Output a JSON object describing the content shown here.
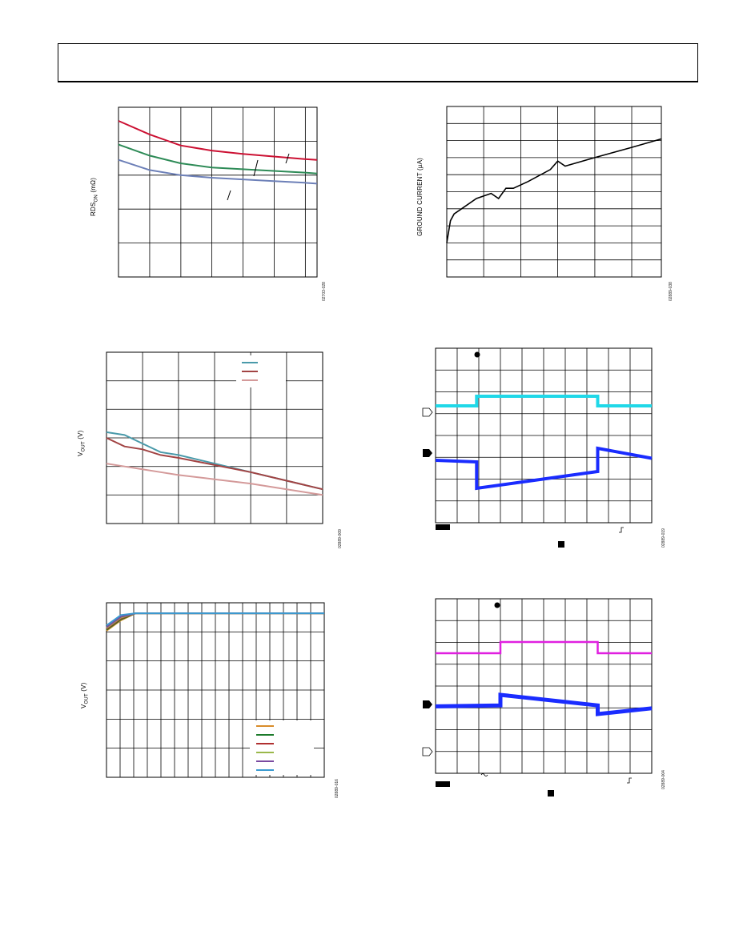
{
  "page": {
    "header_text": ""
  },
  "charts": {
    "rds": {
      "ylabel_main": "RDS",
      "ylabel_sub": "ON",
      "ylabel_unit": " (mΩ)",
      "figure_id": "02703-028"
    },
    "ground": {
      "ylabel": "GROUND CURRENT (µA)",
      "figure_id": "02889-038"
    },
    "vout_load": {
      "ylabel_main": "V",
      "ylabel_sub": "OUT",
      "ylabel_unit": " (V)",
      "figure_id": "02889-009"
    },
    "scope_load": {
      "figure_id": "02889-019"
    },
    "vout_dropout": {
      "ylabel_main": "V",
      "ylabel_sub": "OUT",
      "ylabel_unit": " (V)",
      "figure_id": "02889-016"
    },
    "scope_line": {
      "figure_id": "02889-004"
    }
  },
  "chart_data": [
    {
      "type": "line",
      "ylabel": "RDSON (mΩ)",
      "x": [
        0,
        0.5,
        1,
        1.5,
        2,
        2.5,
        3,
        3.2
      ],
      "series": [
        {
          "color": "#cc1133",
          "values": [
            0.92,
            0.84,
            0.775,
            0.745,
            0.725,
            0.71,
            0.695,
            0.69
          ]
        },
        {
          "color": "#2e8b57",
          "values": [
            0.78,
            0.715,
            0.67,
            0.645,
            0.635,
            0.625,
            0.615,
            0.61
          ]
        },
        {
          "color": "#6d80b8",
          "values": [
            0.69,
            0.63,
            0.6,
            0.585,
            0.575,
            0.565,
            0.555,
            0.55
          ]
        }
      ],
      "xlim": [
        0,
        3.2
      ],
      "ylim": [
        0,
        1
      ],
      "grid": true
    },
    {
      "type": "line",
      "ylabel": "GROUND CURRENT (µA)",
      "x": [
        0,
        0.1,
        0.2,
        0.4,
        0.8,
        1.2,
        1.4,
        1.6,
        1.8,
        2.2,
        2.8,
        3.0,
        3.2,
        4.0,
        5.0,
        5.8
      ],
      "series": [
        {
          "color": "#000000",
          "values": [
            0.2,
            0.33,
            0.37,
            0.4,
            0.46,
            0.49,
            0.46,
            0.52,
            0.52,
            0.56,
            0.63,
            0.68,
            0.65,
            0.7,
            0.76,
            0.81
          ]
        }
      ],
      "xlim": [
        0,
        5.8
      ],
      "ylim": [
        0,
        1
      ],
      "grid": true
    },
    {
      "type": "line",
      "ylabel": "VOUT (V)",
      "x": [
        0,
        0.5,
        1,
        1.5,
        2,
        3,
        4,
        5,
        6
      ],
      "series": [
        {
          "color": "#4a9aaa",
          "values": [
            0.32,
            0.31,
            0.28,
            0.25,
            0.24,
            0.21,
            0.18,
            0.15,
            0.12
          ]
        },
        {
          "color": "#a24444",
          "values": [
            0.3,
            0.27,
            0.26,
            0.24,
            0.23,
            0.205,
            0.18,
            0.15,
            0.12
          ]
        },
        {
          "color": "#d49a9a",
          "values": [
            0.21,
            0.2,
            0.19,
            0.18,
            0.17,
            0.155,
            0.14,
            0.12,
            0.1
          ]
        }
      ],
      "xlim": [
        0,
        6
      ],
      "ylim": [
        0,
        0.6
      ],
      "grid": true
    },
    {
      "type": "line",
      "ylabel": "VOUT (V)",
      "x": [
        0,
        1,
        2,
        3,
        4,
        5,
        6,
        7,
        8,
        9,
        10,
        11,
        12,
        13,
        14,
        15
      ],
      "series": [
        {
          "color": "#d98c2a",
          "values": [
            0.84,
            0.9,
            0.94,
            0.94,
            0.94,
            0.94,
            0.94,
            0.94,
            0.94,
            0.94,
            0.94,
            0.94,
            0.94,
            0.94,
            0.94,
            0.94
          ]
        },
        {
          "color": "#1b7a2a",
          "values": [
            0.845,
            0.905,
            0.94,
            0.94,
            0.94,
            0.94,
            0.94,
            0.94,
            0.94,
            0.94,
            0.94,
            0.94,
            0.94,
            0.94,
            0.94,
            0.94
          ]
        },
        {
          "color": "#b03030",
          "values": [
            0.85,
            0.91,
            0.94,
            0.94,
            0.94,
            0.94,
            0.94,
            0.94,
            0.94,
            0.94,
            0.94,
            0.94,
            0.94,
            0.94,
            0.94,
            0.94
          ]
        },
        {
          "color": "#9ab84a",
          "values": [
            0.855,
            0.915,
            0.94,
            0.94,
            0.94,
            0.94,
            0.94,
            0.94,
            0.94,
            0.94,
            0.94,
            0.94,
            0.94,
            0.94,
            0.94,
            0.94
          ]
        },
        {
          "color": "#7a4aa0",
          "values": [
            0.86,
            0.92,
            0.94,
            0.94,
            0.94,
            0.94,
            0.94,
            0.94,
            0.94,
            0.94,
            0.94,
            0.94,
            0.94,
            0.94,
            0.94,
            0.94
          ]
        },
        {
          "color": "#3a9ad0",
          "values": [
            0.87,
            0.93,
            0.94,
            0.94,
            0.94,
            0.94,
            0.94,
            0.94,
            0.94,
            0.94,
            0.94,
            0.94,
            0.94,
            0.94,
            0.94,
            0.94
          ]
        }
      ],
      "xlim": [
        0,
        15
      ],
      "ylim": [
        0,
        1
      ],
      "grid": true
    },
    {
      "type": "line",
      "x": [
        0,
        1.9,
        1.9,
        7.5,
        7.5,
        10
      ],
      "series": [
        {
          "color": "#20d8e8",
          "values": [
            0.0,
            0.0,
            1.0,
            1.0,
            0.0,
            0.0
          ]
        },
        {
          "color": "#1a2cff",
          "values": [
            0.7,
            0.66,
            0.0,
            0.42,
            1.0,
            0.75
          ]
        }
      ],
      "xlim": [
        0,
        10
      ],
      "ylim": [
        0,
        1
      ],
      "grid": true
    },
    {
      "type": "line",
      "x": [
        0,
        3.0,
        3.0,
        7.5,
        7.5,
        10
      ],
      "series": [
        {
          "color": "#e020e0",
          "values": [
            0.0,
            0.0,
            1.0,
            1.0,
            0.0,
            0.0
          ]
        },
        {
          "color": "#1a2cff",
          "values": [
            0.4,
            0.45,
            1.0,
            0.45,
            0.0,
            0.3
          ]
        }
      ],
      "xlim": [
        0,
        10
      ],
      "ylim": [
        0,
        1
      ],
      "grid": true
    }
  ]
}
